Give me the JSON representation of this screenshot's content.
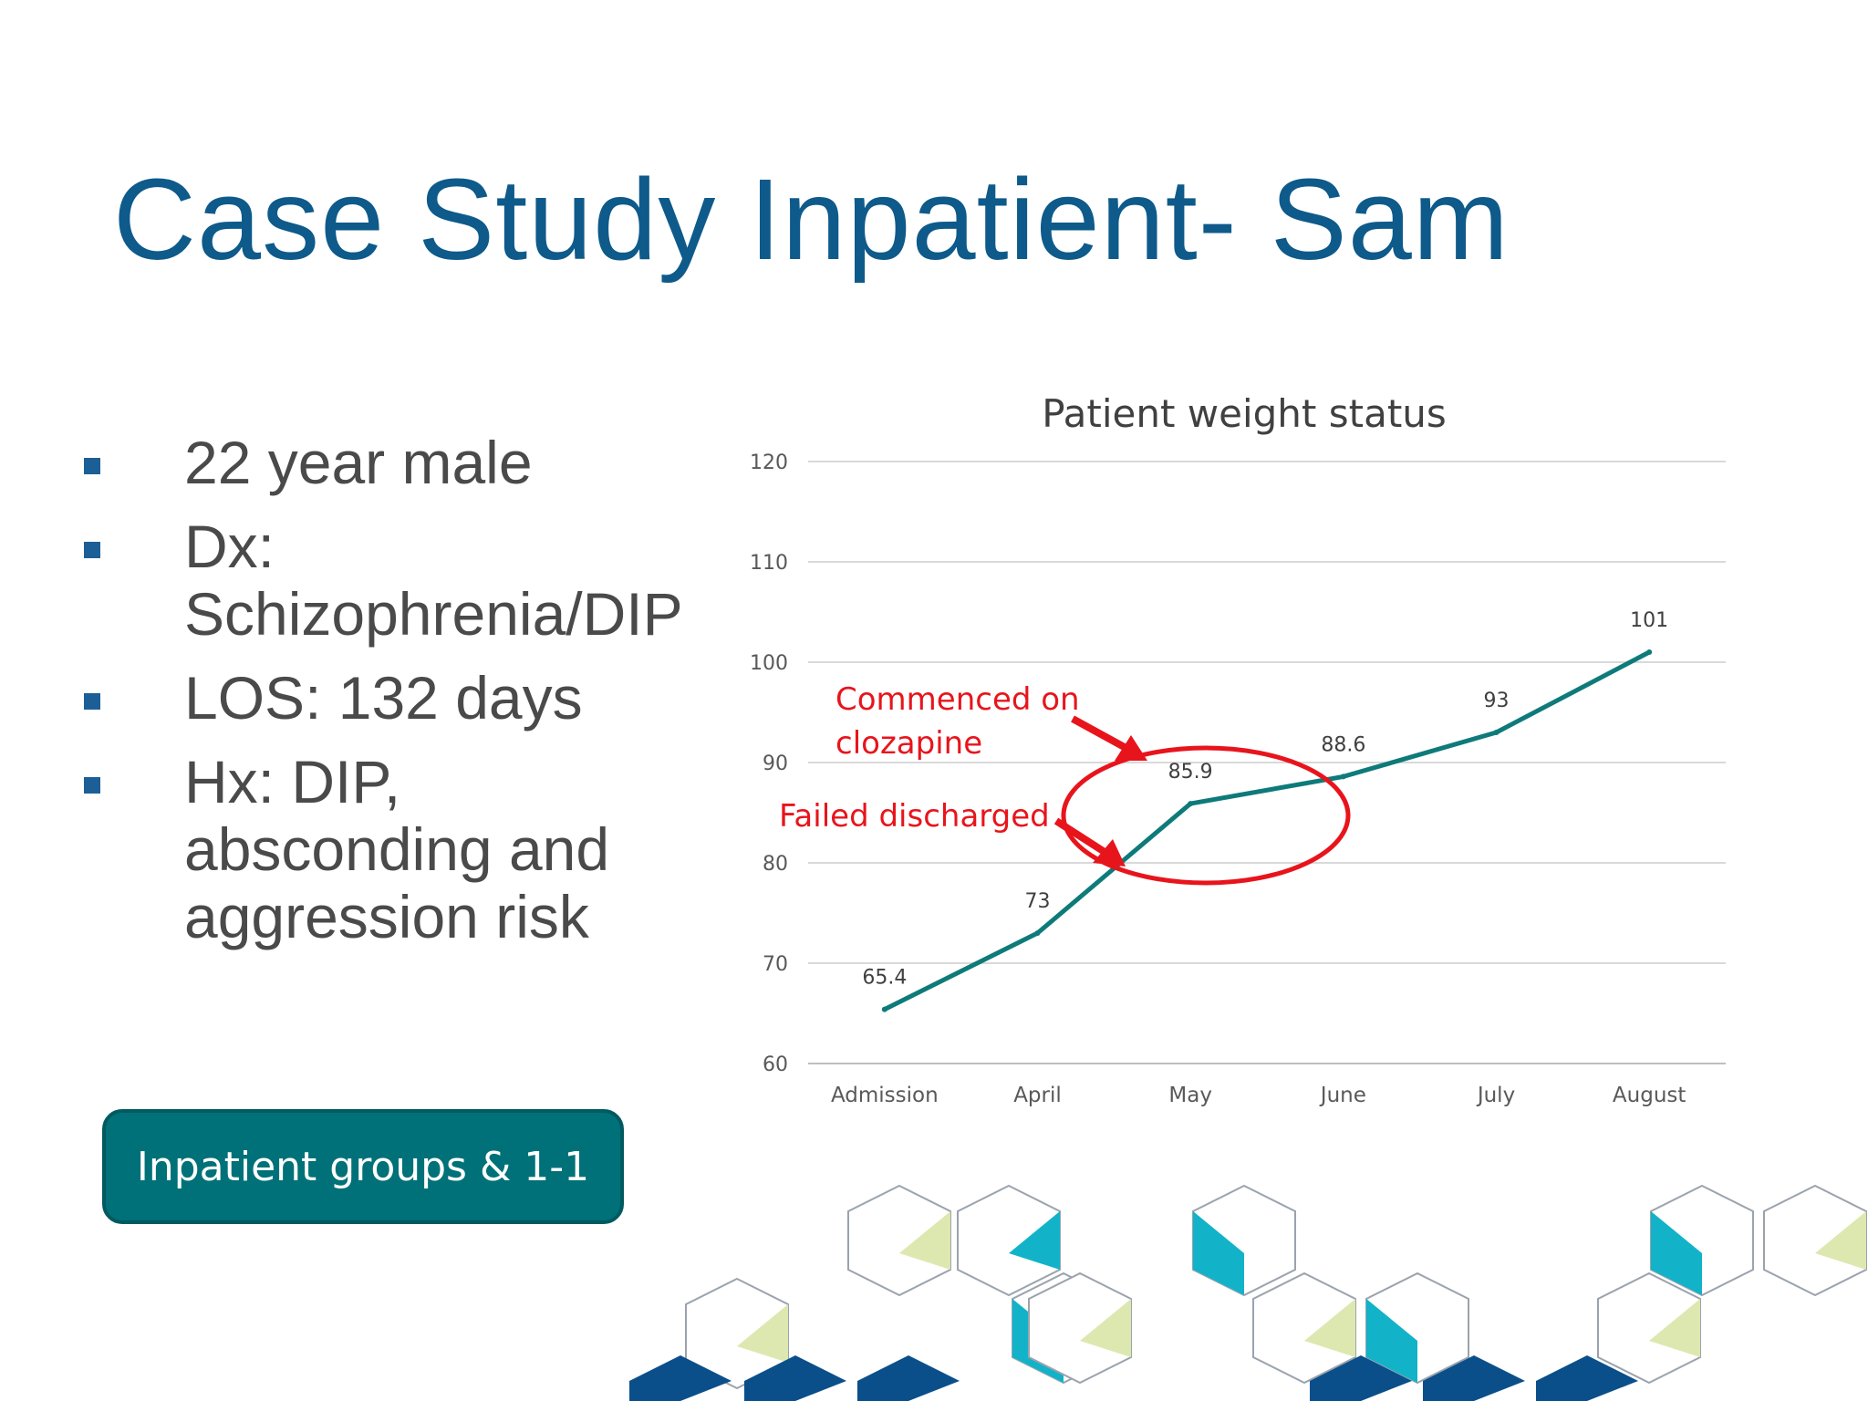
{
  "slide": {
    "title": "Case Study Inpatient- Sam",
    "bullets": [
      {
        "text": "22 year male"
      },
      {
        "text": "Dx: Schizophrenia/DIP"
      },
      {
        "text": "LOS: 132 days"
      },
      {
        "text": "Hx: DIP, absconding and aggression risk"
      }
    ],
    "badge_label": "Inpatient groups & 1-1"
  },
  "chart_data": {
    "type": "line",
    "title": "Patient weight status",
    "categories": [
      "Admission",
      "April",
      "May",
      "June",
      "July",
      "August"
    ],
    "series": [
      {
        "name": "Weight",
        "values": [
          65.4,
          73,
          85.9,
          88.6,
          93,
          101
        ]
      }
    ],
    "data_labels": [
      "65.4",
      "73",
      "85.9",
      "88.6",
      "93",
      "101"
    ],
    "ylim": [
      60,
      120
    ],
    "yticks": [
      60,
      70,
      80,
      90,
      100,
      110,
      120
    ],
    "grid": true,
    "line_color": "#0e7a7a",
    "annotations": [
      {
        "id": "clozapine",
        "lines": [
          "Commenced on",
          "clozapine"
        ],
        "color": "#e8141c"
      },
      {
        "id": "discharged",
        "lines": [
          "Failed discharged"
        ],
        "color": "#e8141c"
      }
    ]
  },
  "decor": {
    "colors": {
      "teal": "#12b3c8",
      "lime": "#dde8b0",
      "navy": "#0a4f8a",
      "outline": "#9aa3ad"
    }
  }
}
